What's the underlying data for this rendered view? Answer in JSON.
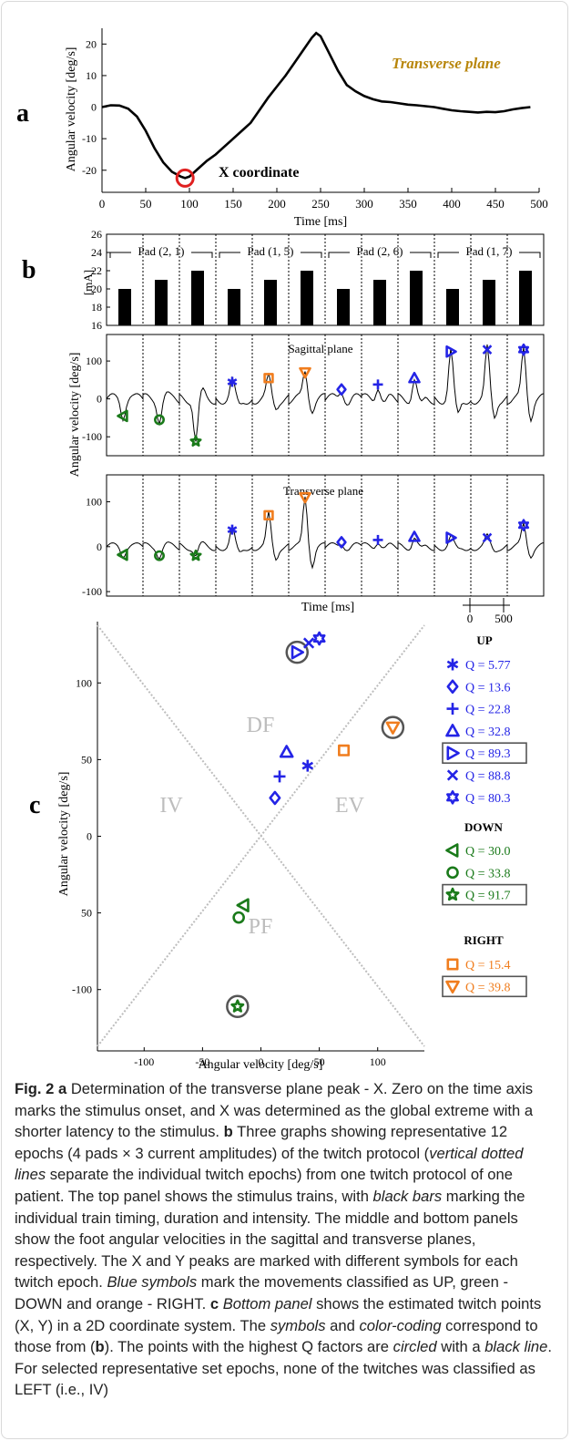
{
  "panel_a": {
    "letter": "a",
    "annotation": "Transverse plane",
    "x_annotation": "X coordinate",
    "xlabel": "Time [ms]",
    "ylabel": "Angular velocity [deg/s]",
    "xticks": [
      "0",
      "50",
      "100",
      "150",
      "200",
      "250",
      "300",
      "350",
      "400",
      "450",
      "500"
    ],
    "yticks": [
      "20",
      "10",
      "0",
      "-10",
      "-20"
    ]
  },
  "panel_b": {
    "letter": "b",
    "pad_labels": [
      "Pad (2, 1)",
      "Pad (1, 5)",
      "Pad (2, 6)",
      "Pad (1, 7)"
    ],
    "bar_ylabel": "[mA]",
    "bar_yticks": [
      "26",
      "24",
      "22",
      "20",
      "18",
      "16"
    ],
    "sagittal_title": "Sagittal plane",
    "transverse_title": "Transverse plane",
    "ylabel": "Angular velocity [deg/s]",
    "sag_yticks": [
      "100",
      "0",
      "-100"
    ],
    "trans_yticks": [
      "100",
      "0",
      "-100"
    ],
    "xlabel": "Time [ms]",
    "scale_0": "0",
    "scale_500": "500"
  },
  "panel_c": {
    "letter": "c",
    "xlabel": "Angular velocity [deg/s]",
    "ylabel": "Angular velocity [deg/s]",
    "xticks": [
      "-100",
      "-50",
      "0",
      "50",
      "100"
    ],
    "yticks": [
      "100",
      "50",
      "0",
      "50",
      "-100"
    ],
    "regions": {
      "df": "DF",
      "iv": "IV",
      "ev": "EV",
      "pf": "PF"
    },
    "legend_up_title": "UP",
    "legend_down_title": "DOWN",
    "legend_right_title": "RIGHT",
    "legend_up": [
      "Q = 5.77",
      "Q = 13.6",
      "Q = 22.8",
      "Q = 32.8",
      "Q = 89.3",
      "Q = 88.8",
      "Q = 80.3"
    ],
    "legend_down": [
      "Q = 30.0",
      "Q = 33.8",
      "Q = 91.7"
    ],
    "legend_right": [
      "Q = 15.4",
      "Q = 39.8"
    ]
  },
  "colors": {
    "up": "#2424e6",
    "down": "#1a7a1a",
    "right": "#f07d1e",
    "circle_a": "#e02020",
    "gray": "#bdbdbd"
  },
  "chart_data": [
    {
      "type": "line",
      "title": "Transverse plane",
      "xlabel": "Time [ms]",
      "ylabel": "Angular velocity [deg/s]",
      "xlim": [
        0,
        500
      ],
      "ylim": [
        -27,
        25
      ],
      "series": [
        {
          "x": [
            0,
            10,
            20,
            30,
            40,
            50,
            60,
            70,
            80,
            90,
            95,
            100,
            110,
            120,
            130,
            140,
            150,
            160,
            170,
            180,
            190,
            200,
            210,
            220,
            230,
            240,
            245,
            250,
            260,
            270,
            280,
            290,
            300,
            310,
            320,
            330,
            340,
            350,
            360,
            370,
            380,
            390,
            400,
            410,
            420,
            430,
            440,
            450,
            460,
            470,
            480,
            490
          ],
          "values": [
            0,
            0.6,
            0.5,
            -0.5,
            -3,
            -7.5,
            -13,
            -17.5,
            -20.5,
            -22,
            -22.5,
            -22,
            -19.5,
            -17,
            -15,
            -12.5,
            -10,
            -7.5,
            -5,
            -1,
            3,
            6.5,
            10,
            14,
            18,
            22,
            23.5,
            22.5,
            17,
            11.5,
            7,
            5,
            3.5,
            2.5,
            1.8,
            1.6,
            1.2,
            0.8,
            0.6,
            0.3,
            0,
            -0.5,
            -1,
            -1.3,
            -1.5,
            -1.7,
            -1.5,
            -1.6,
            -1.3,
            -0.7,
            -0.3,
            0
          ]
        }
      ],
      "annotations": [
        "X coordinate"
      ]
    },
    {
      "type": "bar",
      "title": "",
      "ylabel": "[mA]",
      "ylim": [
        16,
        26
      ],
      "categories": [
        "Pad (2, 1)",
        "Pad (2, 1)",
        "Pad (2, 1)",
        "Pad (1, 5)",
        "Pad (1, 5)",
        "Pad (1, 5)",
        "Pad (2, 6)",
        "Pad (2, 6)",
        "Pad (2, 6)",
        "Pad (1, 7)",
        "Pad (1, 7)",
        "Pad (1, 7)"
      ],
      "values": [
        20,
        21,
        22,
        20,
        21,
        22,
        20,
        21,
        22,
        20,
        21,
        22
      ]
    },
    {
      "type": "scatter",
      "title": "",
      "xlabel": "Angular velocity [deg/s]",
      "ylabel": "Angular velocity [deg/s]",
      "xlim": [
        -140,
        140
      ],
      "ylim": [
        -140,
        140
      ],
      "series": [
        {
          "name": "UP",
          "points": [
            {
              "label": "Q = 5.77",
              "x": 40,
              "y": 46
            },
            {
              "label": "Q = 13.6",
              "x": 12,
              "y": 25
            },
            {
              "label": "Q = 22.8",
              "x": 16,
              "y": 39
            },
            {
              "label": "Q = 32.8",
              "x": 22,
              "y": 55
            },
            {
              "label": "Q = 89.3",
              "x": 31,
              "y": 120
            },
            {
              "label": "Q = 88.8",
              "x": 41,
              "y": 126
            },
            {
              "label": "Q = 80.3",
              "x": 50,
              "y": 129
            }
          ]
        },
        {
          "name": "DOWN",
          "points": [
            {
              "label": "Q = 30.0",
              "x": -15,
              "y": -45
            },
            {
              "label": "Q = 33.8",
              "x": -19,
              "y": -53
            },
            {
              "label": "Q = 91.7",
              "x": -20,
              "y": -111
            }
          ]
        },
        {
          "name": "RIGHT",
          "points": [
            {
              "label": "Q = 15.4",
              "x": 71,
              "y": 56
            },
            {
              "label": "Q = 39.8",
              "x": 113,
              "y": 71
            }
          ]
        }
      ]
    }
  ],
  "caption": {
    "fig_label": "Fig. 2",
    "a_letter": "a",
    "a_text": " Determination of the transverse plane peak - X. Zero on the time axis marks the stimulus onset, and X was determined as the global extreme with a shorter latency to the stimulus. ",
    "b_letter": "b",
    "b_text1": " Three graphs showing representative 12 epochs (4 pads × 3 current amplitudes) of the twitch protocol (",
    "b_ital1": "vertical dotted lines",
    "b_text2": " separate the individual twitch epochs) from one twitch protocol of one patient. The top panel shows the stimulus trains, with ",
    "b_ital2": "black bars",
    "b_text3": " marking the individual train timing, duration and intensity. The middle and bottom panels show the foot angular velocities in the sagittal and transverse planes, respectively. The X and Y peaks are marked with different symbols for each twitch epoch. ",
    "b_ital3": "Blue symbols",
    "b_text4": " mark the movements classified as UP, green - DOWN and orange - RIGHT. ",
    "c_letter": "c",
    "c_ital1": "Bottom panel",
    "c_text1": " shows the estimated twitch points (X, Y) in a 2D coordinate system. The ",
    "c_ital2": "symbols",
    "c_text2": " and ",
    "c_ital3": "color-coding",
    "c_text3": " correspond to those from (",
    "c_bold_b": "b",
    "c_text4": "). The points with the highest Q factors are ",
    "c_ital4": "circled",
    "c_text5": " with a ",
    "c_ital5": "black line",
    "c_text6": ". For selected representative set epochs, none of the twitches was classified as LEFT (i.e., IV)"
  }
}
